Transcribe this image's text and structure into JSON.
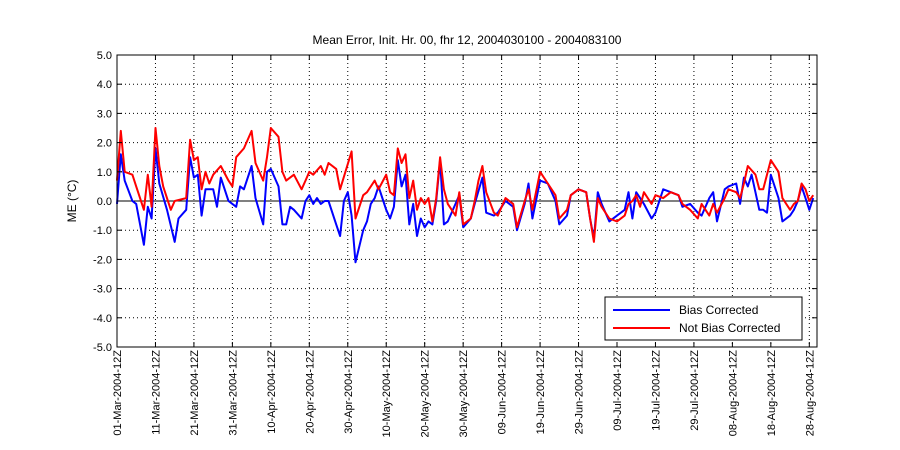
{
  "chart_data": {
    "type": "line",
    "title": "Mean Error, Init. Hr. 00, fhr 12, 2004030100 - 2004083100",
    "ylabel": "ME (°C)",
    "xlabel": "",
    "ylim": [
      -5,
      5
    ],
    "xlim_days": [
      0,
      182
    ],
    "y_ticks": [
      "-5.0",
      "-4.0",
      "-3.0",
      "-2.0",
      "-1.0",
      "0.0",
      "1.0",
      "2.0",
      "3.0",
      "4.0",
      "5.0"
    ],
    "x_tick_days": [
      0,
      10,
      20,
      30,
      40,
      50,
      60,
      70,
      80,
      90,
      100,
      110,
      120,
      130,
      140,
      150,
      160,
      170,
      180
    ],
    "x_tick_labels": [
      "01-Mar-2004-12Z",
      "11-Mar-2004-12Z",
      "21-Mar-2004-12Z",
      "31-Mar-2004-12Z",
      "10-Apr-2004-12Z",
      "20-Apr-2004-12Z",
      "30-Apr-2004-12Z",
      "10-May-2004-12Z",
      "20-May-2004-12Z",
      "30-May-2004-12Z",
      "09-Jun-2004-12Z",
      "19-Jun-2004-12Z",
      "29-Jun-2004-12Z",
      "09-Jul-2004-12Z",
      "19-Jul-2004-12Z",
      "29-Jul-2004-12Z",
      "08-Aug-2004-12Z",
      "18-Aug-2004-12Z",
      "28-Aug-2004-12Z"
    ],
    "grid": true,
    "legend_position": "bottom-right",
    "series": [
      {
        "name": "Bias Corrected",
        "color": "#0000ff",
        "points": [
          [
            0,
            -0.1
          ],
          [
            1,
            1.6
          ],
          [
            2,
            0.7
          ],
          [
            4,
            0
          ],
          [
            5,
            -0.1
          ],
          [
            7,
            -1.5
          ],
          [
            8,
            -0.2
          ],
          [
            9,
            -0.6
          ],
          [
            10,
            1.8
          ],
          [
            11,
            0.6
          ],
          [
            13,
            -0.3
          ],
          [
            15,
            -1.4
          ],
          [
            16,
            -0.6
          ],
          [
            18,
            -0.3
          ],
          [
            19,
            1.5
          ],
          [
            20,
            0.8
          ],
          [
            21,
            0.9
          ],
          [
            22,
            -0.5
          ],
          [
            23,
            0.4
          ],
          [
            25,
            0.4
          ],
          [
            26,
            -0.2
          ],
          [
            27,
            0.8
          ],
          [
            29,
            0
          ],
          [
            30,
            -0.1
          ],
          [
            31,
            -0.2
          ],
          [
            32,
            0.5
          ],
          [
            33,
            0.4
          ],
          [
            35,
            1.2
          ],
          [
            36,
            0.1
          ],
          [
            38,
            -0.8
          ],
          [
            39,
            1.0
          ],
          [
            40,
            1.1
          ],
          [
            42,
            0.5
          ],
          [
            43,
            -0.8
          ],
          [
            44,
            -0.8
          ],
          [
            45,
            -0.2
          ],
          [
            46,
            -0.3
          ],
          [
            48,
            -0.6
          ],
          [
            49,
            0.0
          ],
          [
            50,
            0.2
          ],
          [
            51,
            -0.1
          ],
          [
            52,
            0.1
          ],
          [
            53,
            -0.1
          ],
          [
            54,
            0.0
          ],
          [
            55,
            0.0
          ],
          [
            57,
            -0.8
          ],
          [
            58,
            -1.2
          ],
          [
            59,
            0.0
          ],
          [
            60,
            0.3
          ],
          [
            61,
            -0.5
          ],
          [
            62,
            -2.1
          ],
          [
            64,
            -1.0
          ],
          [
            65,
            -0.7
          ],
          [
            66,
            -0.1
          ],
          [
            67,
            0.1
          ],
          [
            68,
            0.5
          ],
          [
            70,
            -0.3
          ],
          [
            71,
            -0.6
          ],
          [
            72,
            -0.2
          ],
          [
            73,
            1.4
          ],
          [
            74,
            0.5
          ],
          [
            75,
            0.9
          ],
          [
            76,
            -0.8
          ],
          [
            77,
            -0.1
          ],
          [
            78,
            -1.2
          ],
          [
            79,
            -0.6
          ],
          [
            80,
            -0.9
          ],
          [
            81,
            -0.7
          ],
          [
            82,
            -0.8
          ],
          [
            83,
            0.0
          ],
          [
            84,
            1.4
          ],
          [
            85,
            -0.8
          ],
          [
            86,
            -0.7
          ],
          [
            88,
            -0.1
          ],
          [
            89,
            0.2
          ],
          [
            90,
            -0.9
          ],
          [
            92,
            -0.6
          ],
          [
            93,
            -0.1
          ],
          [
            95,
            0.8
          ],
          [
            96,
            -0.4
          ],
          [
            98,
            -0.5
          ],
          [
            99,
            -0.4
          ],
          [
            101,
            0.0
          ],
          [
            103,
            -0.2
          ],
          [
            104,
            -1.0
          ],
          [
            106,
            -0.1
          ],
          [
            107,
            0.6
          ],
          [
            108,
            -0.6
          ],
          [
            110,
            0.7
          ],
          [
            112,
            0.6
          ],
          [
            114,
            0.0
          ],
          [
            115,
            -0.8
          ],
          [
            117,
            -0.5
          ],
          [
            118,
            0.2
          ],
          [
            120,
            0.4
          ],
          [
            122,
            0.3
          ],
          [
            123,
            -0.6
          ],
          [
            124,
            -1.3
          ],
          [
            125,
            0.3
          ],
          [
            126,
            -0.1
          ],
          [
            128,
            -0.7
          ],
          [
            130,
            -0.5
          ],
          [
            132,
            -0.3
          ],
          [
            133,
            0.3
          ],
          [
            134,
            -0.6
          ],
          [
            135,
            0.3
          ],
          [
            136,
            0.1
          ],
          [
            137,
            -0.1
          ],
          [
            139,
            -0.6
          ],
          [
            140,
            -0.4
          ],
          [
            142,
            0.4
          ],
          [
            144,
            0.3
          ],
          [
            146,
            0.2
          ],
          [
            147,
            -0.2
          ],
          [
            149,
            -0.1
          ],
          [
            151,
            -0.4
          ],
          [
            152,
            -0.5
          ],
          [
            154,
            0.1
          ],
          [
            155,
            0.3
          ],
          [
            156,
            -0.7
          ],
          [
            158,
            0.4
          ],
          [
            159,
            0.5
          ],
          [
            161,
            0.6
          ],
          [
            162,
            -0.1
          ],
          [
            163,
            0.8
          ],
          [
            164,
            0.5
          ],
          [
            165,
            0.9
          ],
          [
            167,
            -0.3
          ],
          [
            168,
            -0.3
          ],
          [
            169,
            -0.4
          ],
          [
            170,
            0.9
          ],
          [
            172,
            0.1
          ],
          [
            173,
            -0.7
          ],
          [
            175,
            -0.5
          ],
          [
            176,
            -0.3
          ],
          [
            177,
            0.0
          ],
          [
            178,
            0.5
          ],
          [
            179,
            0.1
          ],
          [
            180,
            -0.3
          ],
          [
            181,
            0.1
          ]
        ]
      },
      {
        "name": "Not Bias Corrected",
        "color": "#ff0000",
        "points": [
          [
            0,
            0.7
          ],
          [
            1,
            2.4
          ],
          [
            2,
            1.0
          ],
          [
            4,
            0.9
          ],
          [
            5,
            0.5
          ],
          [
            7,
            -0.3
          ],
          [
            8,
            0.9
          ],
          [
            9,
            -0.2
          ],
          [
            10,
            2.5
          ],
          [
            11,
            1.2
          ],
          [
            12,
            0.5
          ],
          [
            14,
            -0.3
          ],
          [
            15,
            0
          ],
          [
            18,
            0.1
          ],
          [
            19,
            2.1
          ],
          [
            20,
            1.4
          ],
          [
            21,
            1.5
          ],
          [
            22,
            0.4
          ],
          [
            23,
            1.0
          ],
          [
            24,
            0.6
          ],
          [
            25,
            0.9
          ],
          [
            27,
            1.2
          ],
          [
            29,
            0.7
          ],
          [
            30,
            0.5
          ],
          [
            31,
            1.5
          ],
          [
            33,
            1.8
          ],
          [
            35,
            2.4
          ],
          [
            36,
            1.3
          ],
          [
            38,
            0.7
          ],
          [
            39,
            1.5
          ],
          [
            40,
            2.5
          ],
          [
            42,
            2.2
          ],
          [
            43,
            1.0
          ],
          [
            44,
            0.7
          ],
          [
            46,
            0.9
          ],
          [
            48,
            0.4
          ],
          [
            49,
            0.7
          ],
          [
            50,
            1.0
          ],
          [
            51,
            0.9
          ],
          [
            53,
            1.2
          ],
          [
            54,
            0.9
          ],
          [
            55,
            1.3
          ],
          [
            57,
            1.1
          ],
          [
            58,
            0.4
          ],
          [
            61,
            1.7
          ],
          [
            62,
            -0.6
          ],
          [
            64,
            0.2
          ],
          [
            65,
            0.3
          ],
          [
            67,
            0.7
          ],
          [
            68,
            0.4
          ],
          [
            70,
            0.9
          ],
          [
            71,
            0.3
          ],
          [
            72,
            0.2
          ],
          [
            73,
            1.8
          ],
          [
            74,
            1.3
          ],
          [
            75,
            1.6
          ],
          [
            76,
            0.1
          ],
          [
            77,
            0.7
          ],
          [
            78,
            -0.3
          ],
          [
            79,
            0.1
          ],
          [
            80,
            -0.1
          ],
          [
            81,
            0.1
          ],
          [
            82,
            -0.7
          ],
          [
            83,
            0.1
          ],
          [
            84,
            1.5
          ],
          [
            85,
            0.4
          ],
          [
            86,
            -0.1
          ],
          [
            88,
            -0.5
          ],
          [
            89,
            0.3
          ],
          [
            90,
            -0.8
          ],
          [
            92,
            -0.6
          ],
          [
            93,
            0
          ],
          [
            94,
            0.7
          ],
          [
            95,
            1.2
          ],
          [
            96,
            0.3
          ],
          [
            98,
            -0.4
          ],
          [
            99,
            -0.5
          ],
          [
            101,
            0.1
          ],
          [
            103,
            -0.1
          ],
          [
            104,
            -0.9
          ],
          [
            106,
            0
          ],
          [
            107,
            0.4
          ],
          [
            108,
            -0.3
          ],
          [
            110,
            1.0
          ],
          [
            112,
            0.6
          ],
          [
            114,
            0.2
          ],
          [
            115,
            -0.6
          ],
          [
            117,
            -0.3
          ],
          [
            118,
            0.2
          ],
          [
            120,
            0.4
          ],
          [
            122,
            0.3
          ],
          [
            123,
            -0.6
          ],
          [
            124,
            -1.4
          ],
          [
            125,
            0.1
          ],
          [
            126,
            -0.2
          ],
          [
            128,
            -0.6
          ],
          [
            130,
            -0.7
          ],
          [
            132,
            -0.5
          ],
          [
            133,
            -0.1
          ],
          [
            134,
            0
          ],
          [
            135,
            0.2
          ],
          [
            136,
            -0.2
          ],
          [
            137,
            0.3
          ],
          [
            139,
            -0.1
          ],
          [
            140,
            0.2
          ],
          [
            142,
            0.1
          ],
          [
            144,
            0.3
          ],
          [
            146,
            0.2
          ],
          [
            147,
            -0.1
          ],
          [
            149,
            -0.3
          ],
          [
            151,
            -0.6
          ],
          [
            152,
            -0.1
          ],
          [
            154,
            -0.5
          ],
          [
            155,
            -0.1
          ],
          [
            156,
            -0.4
          ],
          [
            158,
            0.1
          ],
          [
            159,
            0.4
          ],
          [
            161,
            0.3
          ],
          [
            162,
            0.1
          ],
          [
            163,
            0.6
          ],
          [
            164,
            1.2
          ],
          [
            166,
            0.9
          ],
          [
            167,
            0.4
          ],
          [
            168,
            0.4
          ],
          [
            170,
            1.4
          ],
          [
            172,
            1.0
          ],
          [
            173,
            0.1
          ],
          [
            175,
            -0.3
          ],
          [
            176,
            -0.1
          ],
          [
            177,
            0
          ],
          [
            178,
            0.6
          ],
          [
            179,
            0.4
          ],
          [
            180,
            0
          ],
          [
            181,
            0.2
          ]
        ]
      }
    ]
  }
}
